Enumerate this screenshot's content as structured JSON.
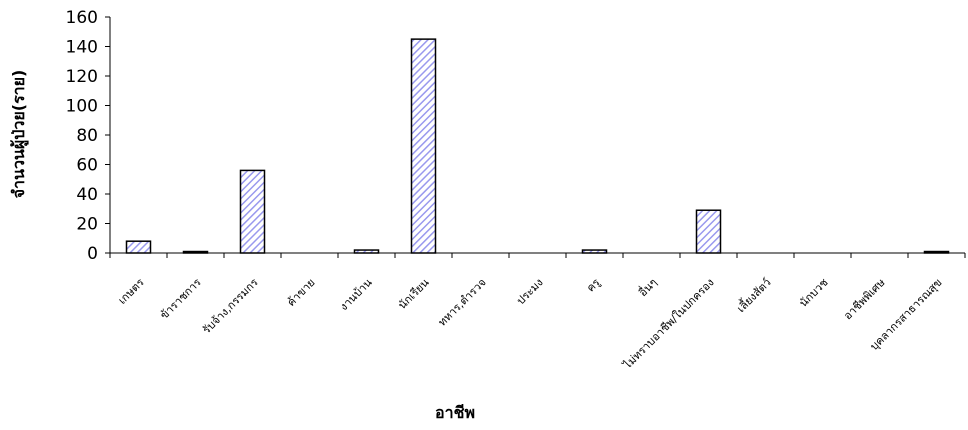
{
  "chart_data": {
    "type": "bar",
    "title": "",
    "xlabel": "อาชีพ",
    "ylabel": "จำนวนผู้ป่วย(ราย)",
    "ylim": [
      0,
      160
    ],
    "yticks": [
      0,
      20,
      40,
      60,
      80,
      100,
      120,
      140,
      160
    ],
    "grid": false,
    "legend": "none",
    "bar_fill": "#c9c9ff",
    "bar_stroke": "#000000",
    "categories": [
      "เกษตร",
      "ข้าราชการ",
      "รับจ้าง,กรรมกร",
      "ค้าขาย",
      "งานบ้าน",
      "นักเรียน",
      "ทหาร,ตำรวจ",
      "ประมง",
      "ครู",
      "อื่นๆ",
      "ไม่ทราบอาชีพ/ในปกครอง",
      "เลี้ยงสัตว์",
      "นักบวช",
      "อาชีพพิเศษ",
      "บุคลากรสาธารณสุข"
    ],
    "values": [
      8,
      1,
      56,
      0,
      2,
      145,
      0,
      0,
      2,
      0,
      29,
      0,
      0,
      0,
      1
    ]
  }
}
